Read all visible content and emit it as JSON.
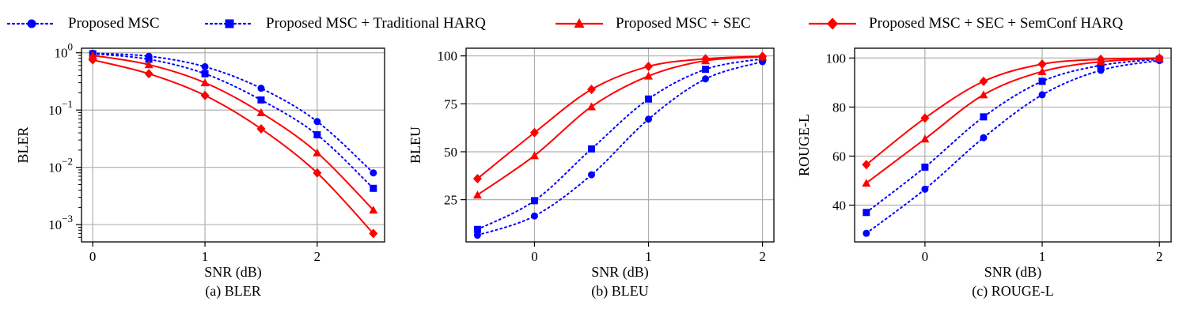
{
  "legend": [
    {
      "name": "Proposed MSC",
      "color": "#0000ff",
      "marker": "circle",
      "line": "dotted"
    },
    {
      "name": "Proposed MSC + Traditional HARQ",
      "color": "#0000ff",
      "marker": "square",
      "line": "dotted"
    },
    {
      "name": "Proposed MSC + SEC",
      "color": "#ff0000",
      "marker": "triangle",
      "line": "solid"
    },
    {
      "name": "Proposed MSC + SEC + SemConf HARQ",
      "color": "#ff0000",
      "marker": "diamond",
      "line": "solid"
    }
  ],
  "chart_data": [
    {
      "type": "line",
      "caption": "(a) BLER",
      "xlabel": "SNR (dB)",
      "ylabel": "BLER",
      "yscale": "log",
      "xlim": [
        -0.1,
        2.6
      ],
      "ylim": [
        0.0005,
        1.2
      ],
      "xticks": [
        0,
        1,
        2
      ],
      "yticks": [
        {
          "value": 1,
          "base": "10",
          "exp": "0"
        },
        {
          "value": 0.1,
          "base": "10",
          "exp": "−1"
        },
        {
          "value": 0.01,
          "base": "10",
          "exp": "−2"
        },
        {
          "value": 0.001,
          "base": "10",
          "exp": "−3"
        }
      ],
      "grid": true,
      "series": [
        {
          "name": "Proposed MSC",
          "x": [
            0,
            0.5,
            1,
            1.5,
            2,
            2.5
          ],
          "values": [
            0.98,
            0.87,
            0.57,
            0.24,
            0.063,
            0.008
          ]
        },
        {
          "name": "Proposed MSC + Traditional HARQ",
          "x": [
            0,
            0.5,
            1,
            1.5,
            2,
            2.5
          ],
          "values": [
            0.96,
            0.77,
            0.43,
            0.15,
            0.037,
            0.0043
          ]
        },
        {
          "name": "Proposed MSC + SEC",
          "x": [
            0,
            0.5,
            1,
            1.5,
            2,
            2.5
          ],
          "values": [
            0.9,
            0.62,
            0.3,
            0.09,
            0.018,
            0.0018
          ]
        },
        {
          "name": "Proposed MSC + SEC + SemConf HARQ",
          "x": [
            0,
            0.5,
            1,
            1.5,
            2,
            2.5
          ],
          "values": [
            0.75,
            0.43,
            0.18,
            0.047,
            0.008,
            0.0007
          ]
        }
      ]
    },
    {
      "type": "line",
      "caption": "(b) BLEU",
      "xlabel": "SNR (dB)",
      "ylabel": "BLEU",
      "yscale": "linear",
      "xlim": [
        -0.6,
        2.1
      ],
      "ylim": [
        3,
        104
      ],
      "xticks": [
        0,
        1,
        2
      ],
      "yticks": [
        25,
        50,
        75,
        100
      ],
      "grid": true,
      "series": [
        {
          "name": "Proposed MSC",
          "x": [
            -0.5,
            0,
            0.5,
            1,
            1.5,
            2
          ],
          "values": [
            6.5,
            16.5,
            38,
            67,
            88,
            97
          ]
        },
        {
          "name": "Proposed MSC + Traditional HARQ",
          "x": [
            -0.5,
            0,
            0.5,
            1,
            1.5,
            2
          ],
          "values": [
            9.5,
            24.5,
            51.5,
            77.5,
            93,
            98.5
          ]
        },
        {
          "name": "Proposed MSC + SEC",
          "x": [
            -0.5,
            0,
            0.5,
            1,
            1.5,
            2
          ],
          "values": [
            27.5,
            48,
            73.5,
            89.5,
            97.5,
            99.5
          ]
        },
        {
          "name": "Proposed MSC + SEC + SemConf HARQ",
          "x": [
            -0.5,
            0,
            0.5,
            1,
            1.5,
            2
          ],
          "values": [
            36,
            60,
            82.5,
            94.5,
            98.5,
            99.8
          ]
        }
      ]
    },
    {
      "type": "line",
      "caption": "(c) ROUGE-L",
      "xlabel": "SNR (dB)",
      "ylabel": "ROUGE-L",
      "yscale": "linear",
      "xlim": [
        -0.6,
        2.1
      ],
      "ylim": [
        25,
        104
      ],
      "xticks": [
        0,
        1,
        2
      ],
      "yticks": [
        40,
        60,
        80,
        100
      ],
      "grid": true,
      "series": [
        {
          "name": "Proposed MSC",
          "x": [
            -0.5,
            0,
            0.5,
            1,
            1.5,
            2
          ],
          "values": [
            28.5,
            46.5,
            67.5,
            85,
            95,
            99
          ]
        },
        {
          "name": "Proposed MSC + Traditional HARQ",
          "x": [
            -0.5,
            0,
            0.5,
            1,
            1.5,
            2
          ],
          "values": [
            37,
            55.5,
            76,
            90.5,
            97,
            99.5
          ]
        },
        {
          "name": "Proposed MSC + SEC",
          "x": [
            -0.5,
            0,
            0.5,
            1,
            1.5,
            2
          ],
          "values": [
            49,
            67,
            85,
            94.5,
            98.5,
            99.8
          ]
        },
        {
          "name": "Proposed MSC + SEC + SemConf HARQ",
          "x": [
            -0.5,
            0,
            0.5,
            1,
            1.5,
            2
          ],
          "values": [
            56.5,
            75.5,
            90.5,
            97.5,
            99.5,
            100
          ]
        }
      ]
    }
  ]
}
